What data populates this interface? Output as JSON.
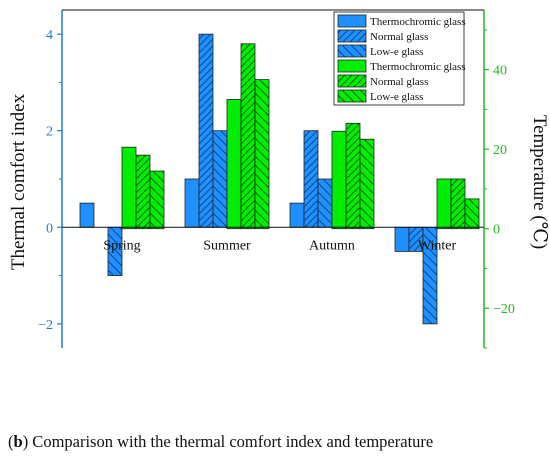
{
  "caption": {
    "open_paren": "(",
    "label": "b",
    "text": ") Comparison with the thermal comfort index and temperature"
  },
  "colors": {
    "blue": "#1e90ff",
    "green": "#00ee00",
    "left_axis": "#1e7fd0",
    "right_axis": "#22bb22",
    "edge": "#222222"
  },
  "chart_data": {
    "type": "bar",
    "categories": [
      "Spring",
      "Summer",
      "Autumn",
      "Winter"
    ],
    "y_left": {
      "label": "Thermal comfort index",
      "ylim": [
        -2.5,
        4.5
      ],
      "ticks": [
        -2,
        0,
        2,
        4
      ],
      "tick_labels": [
        "−2",
        "0",
        "2",
        "4"
      ]
    },
    "y_right": {
      "label": "Temperature (℃)",
      "ylim": [
        -30,
        55
      ],
      "ticks": [
        -20,
        0,
        20,
        40
      ],
      "tick_labels": [
        "−20",
        "0",
        "20",
        "40"
      ]
    },
    "series": [
      {
        "name": "Thermochromic glass",
        "axis": "left",
        "color": "blue",
        "pattern": "solid",
        "values": [
          0.5,
          1,
          0.5,
          -0.5
        ]
      },
      {
        "name": "Normal glass",
        "axis": "left",
        "color": "blue",
        "pattern": "hatch",
        "values": [
          0,
          4,
          2,
          -0.5
        ]
      },
      {
        "name": "Low-e glass",
        "axis": "left",
        "color": "blue",
        "pattern": "crosshatch",
        "values": [
          -1,
          2,
          1,
          -2
        ]
      },
      {
        "name": "Thermochromic glass",
        "axis": "right",
        "color": "green",
        "pattern": "solid",
        "values": [
          20.5,
          32.5,
          24.5,
          12.5
        ]
      },
      {
        "name": "Normal glass",
        "axis": "right",
        "color": "green",
        "pattern": "hatch",
        "values": [
          18.5,
          46.5,
          26.5,
          12.5
        ]
      },
      {
        "name": "Low-e glass",
        "axis": "right",
        "color": "green",
        "pattern": "crosshatch",
        "values": [
          14.5,
          37.5,
          22.5,
          7.5
        ]
      }
    ],
    "legend_placement": "top-right inside plot",
    "grid": false
  }
}
